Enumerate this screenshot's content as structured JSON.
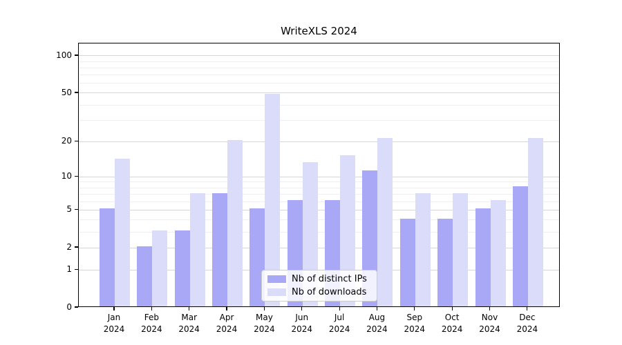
{
  "title": "WriteXLS 2024",
  "legend": {
    "items": [
      {
        "label": "Nb of distinct IPs",
        "key": "ips"
      },
      {
        "label": "Nb of downloads",
        "key": "downloads"
      }
    ]
  },
  "colors": {
    "ips_bar": "#a8a8f6",
    "downloads_bar": "#dbdbfa",
    "grid_major": "#d6d6d6",
    "grid_minor": "#efefef",
    "axis": "#000000",
    "legend_border": "#cccccc"
  },
  "chart_data": {
    "type": "bar",
    "title": "WriteXLS 2024",
    "categories": [
      "Jan",
      "Feb",
      "Mar",
      "Apr",
      "May",
      "Jun",
      "Jul",
      "Aug",
      "Sep",
      "Oct",
      "Nov",
      "Dec"
    ],
    "category_year": "2024",
    "series": [
      {
        "name": "Nb of distinct IPs",
        "key": "ips",
        "color": "#a8a8f6",
        "values": [
          5,
          2,
          3,
          7,
          5,
          6,
          6,
          11,
          4,
          4,
          5,
          8
        ]
      },
      {
        "name": "Nb of downloads",
        "key": "downloads",
        "color": "#dbdbfa",
        "values": [
          14,
          3,
          7,
          20,
          48,
          13,
          15,
          21,
          7,
          7,
          6,
          21
        ]
      }
    ],
    "xlabel": "",
    "ylabel": "",
    "yscale": "log1p",
    "y_ticks": [
      0,
      1,
      2,
      5,
      10,
      20,
      50,
      100
    ],
    "y_minor_gridlines": [
      3,
      4,
      6,
      7,
      8,
      9,
      30,
      40,
      60,
      70,
      80,
      90
    ],
    "ylim": [
      0,
      125
    ],
    "grid": true,
    "legend_position": "lower center"
  }
}
